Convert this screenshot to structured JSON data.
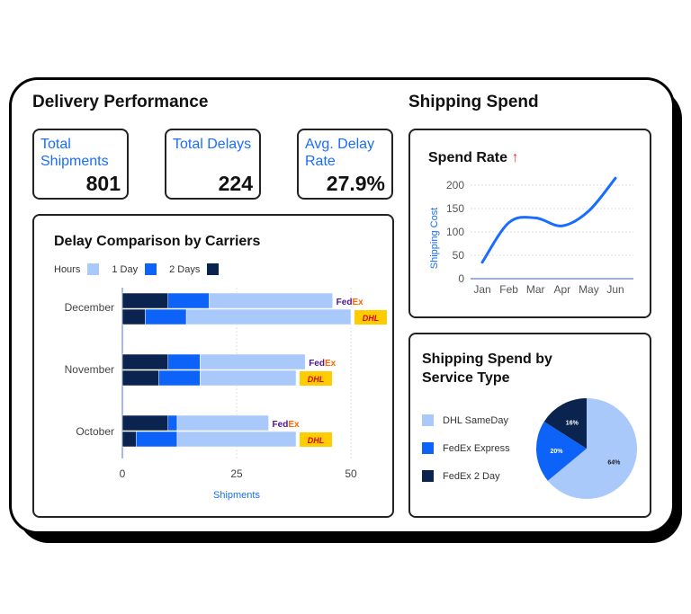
{
  "delivery": {
    "title": "Delivery Performance",
    "kpis": [
      {
        "label": "Total Shipments",
        "value": "801"
      },
      {
        "label": "Total Delays",
        "value": "224"
      },
      {
        "label": "Avg. Delay Rate",
        "value": "27.9%"
      }
    ]
  },
  "shipping": {
    "title": "Shipping Spend"
  },
  "colors": {
    "hours": "#a9c9fb",
    "one_day": "#0d63f8",
    "two_days": "#0a234f",
    "accent": "#1a6cff",
    "up_arrow": "#f03030"
  },
  "chart_data": [
    {
      "type": "bar",
      "orientation": "horizontal-stacked",
      "title": "Delay Comparison by Carriers",
      "legend": [
        "Hours",
        "1 Day",
        "2 Days"
      ],
      "legend_placement": "top-left",
      "xlabel": "Shipments",
      "xlim": [
        0,
        50
      ],
      "xticks": [
        "0",
        "25",
        "50"
      ],
      "categories": [
        "December",
        "November",
        "October"
      ],
      "carriers": [
        "FedEx",
        "DHL"
      ],
      "grid": true,
      "bars": [
        {
          "month": "December",
          "carrier": "FedEx",
          "2 Days": 10,
          "1 Day": 9,
          "Hours": 27
        },
        {
          "month": "December",
          "carrier": "DHL",
          "2 Days": 5,
          "1 Day": 9,
          "Hours": 36
        },
        {
          "month": "November",
          "carrier": "FedEx",
          "2 Days": 10,
          "1 Day": 7,
          "Hours": 23
        },
        {
          "month": "November",
          "carrier": "DHL",
          "2 Days": 8,
          "1 Day": 9,
          "Hours": 21
        },
        {
          "month": "October",
          "carrier": "FedEx",
          "2 Days": 10,
          "1 Day": 2,
          "Hours": 20
        },
        {
          "month": "October",
          "carrier": "DHL",
          "2 Days": 3,
          "1 Day": 9,
          "Hours": 26
        }
      ]
    },
    {
      "type": "line",
      "title": "Spend Rate",
      "title_icon": "arrow-up-icon",
      "ylabel": "Shipping Cost",
      "ylim": [
        0,
        200
      ],
      "yticks": [
        "0",
        "50",
        "100",
        "150",
        "200"
      ],
      "categories": [
        "Jan",
        "Feb",
        "Mar",
        "Apr",
        "May",
        "Jun"
      ],
      "values": [
        35,
        120,
        130,
        113,
        145,
        215
      ],
      "grid": true
    },
    {
      "type": "pie",
      "title": "Shipping Spend by Service Type",
      "legend_placement": "left",
      "slices": [
        {
          "label": "DHL SameDay",
          "value": 64,
          "text": "64%",
          "color": "#a9c9fb"
        },
        {
          "label": "FedEx Express",
          "value": 20,
          "text": "20%",
          "color": "#0d63f8"
        },
        {
          "label": "FedEx 2 Day",
          "value": 16,
          "text": "16%",
          "color": "#0a234f"
        }
      ]
    }
  ]
}
